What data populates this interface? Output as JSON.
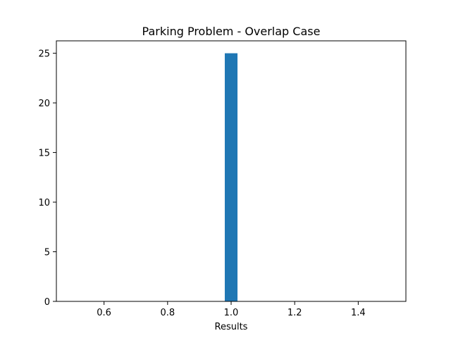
{
  "chart_data": {
    "type": "bar",
    "title": "Parking Problem - Overlap Case",
    "xlabel": "Results",
    "ylabel": "",
    "xlim": [
      0.45,
      1.55
    ],
    "ylim": [
      0,
      26.25
    ],
    "x_ticks": [
      0.6,
      0.8,
      1.0,
      1.2,
      1.4
    ],
    "x_tick_labels": [
      "0.6",
      "0.8",
      "1.0",
      "1.2",
      "1.4"
    ],
    "y_ticks": [
      0,
      5,
      10,
      15,
      20,
      25
    ],
    "y_tick_labels": [
      "0",
      "5",
      "10",
      "15",
      "20",
      "25"
    ],
    "bars": [
      {
        "x_start": 0.98,
        "x_end": 1.02,
        "value": 25
      }
    ],
    "grid": false,
    "colors": {
      "bar": "#1f77b4",
      "axis": "#000000"
    }
  }
}
